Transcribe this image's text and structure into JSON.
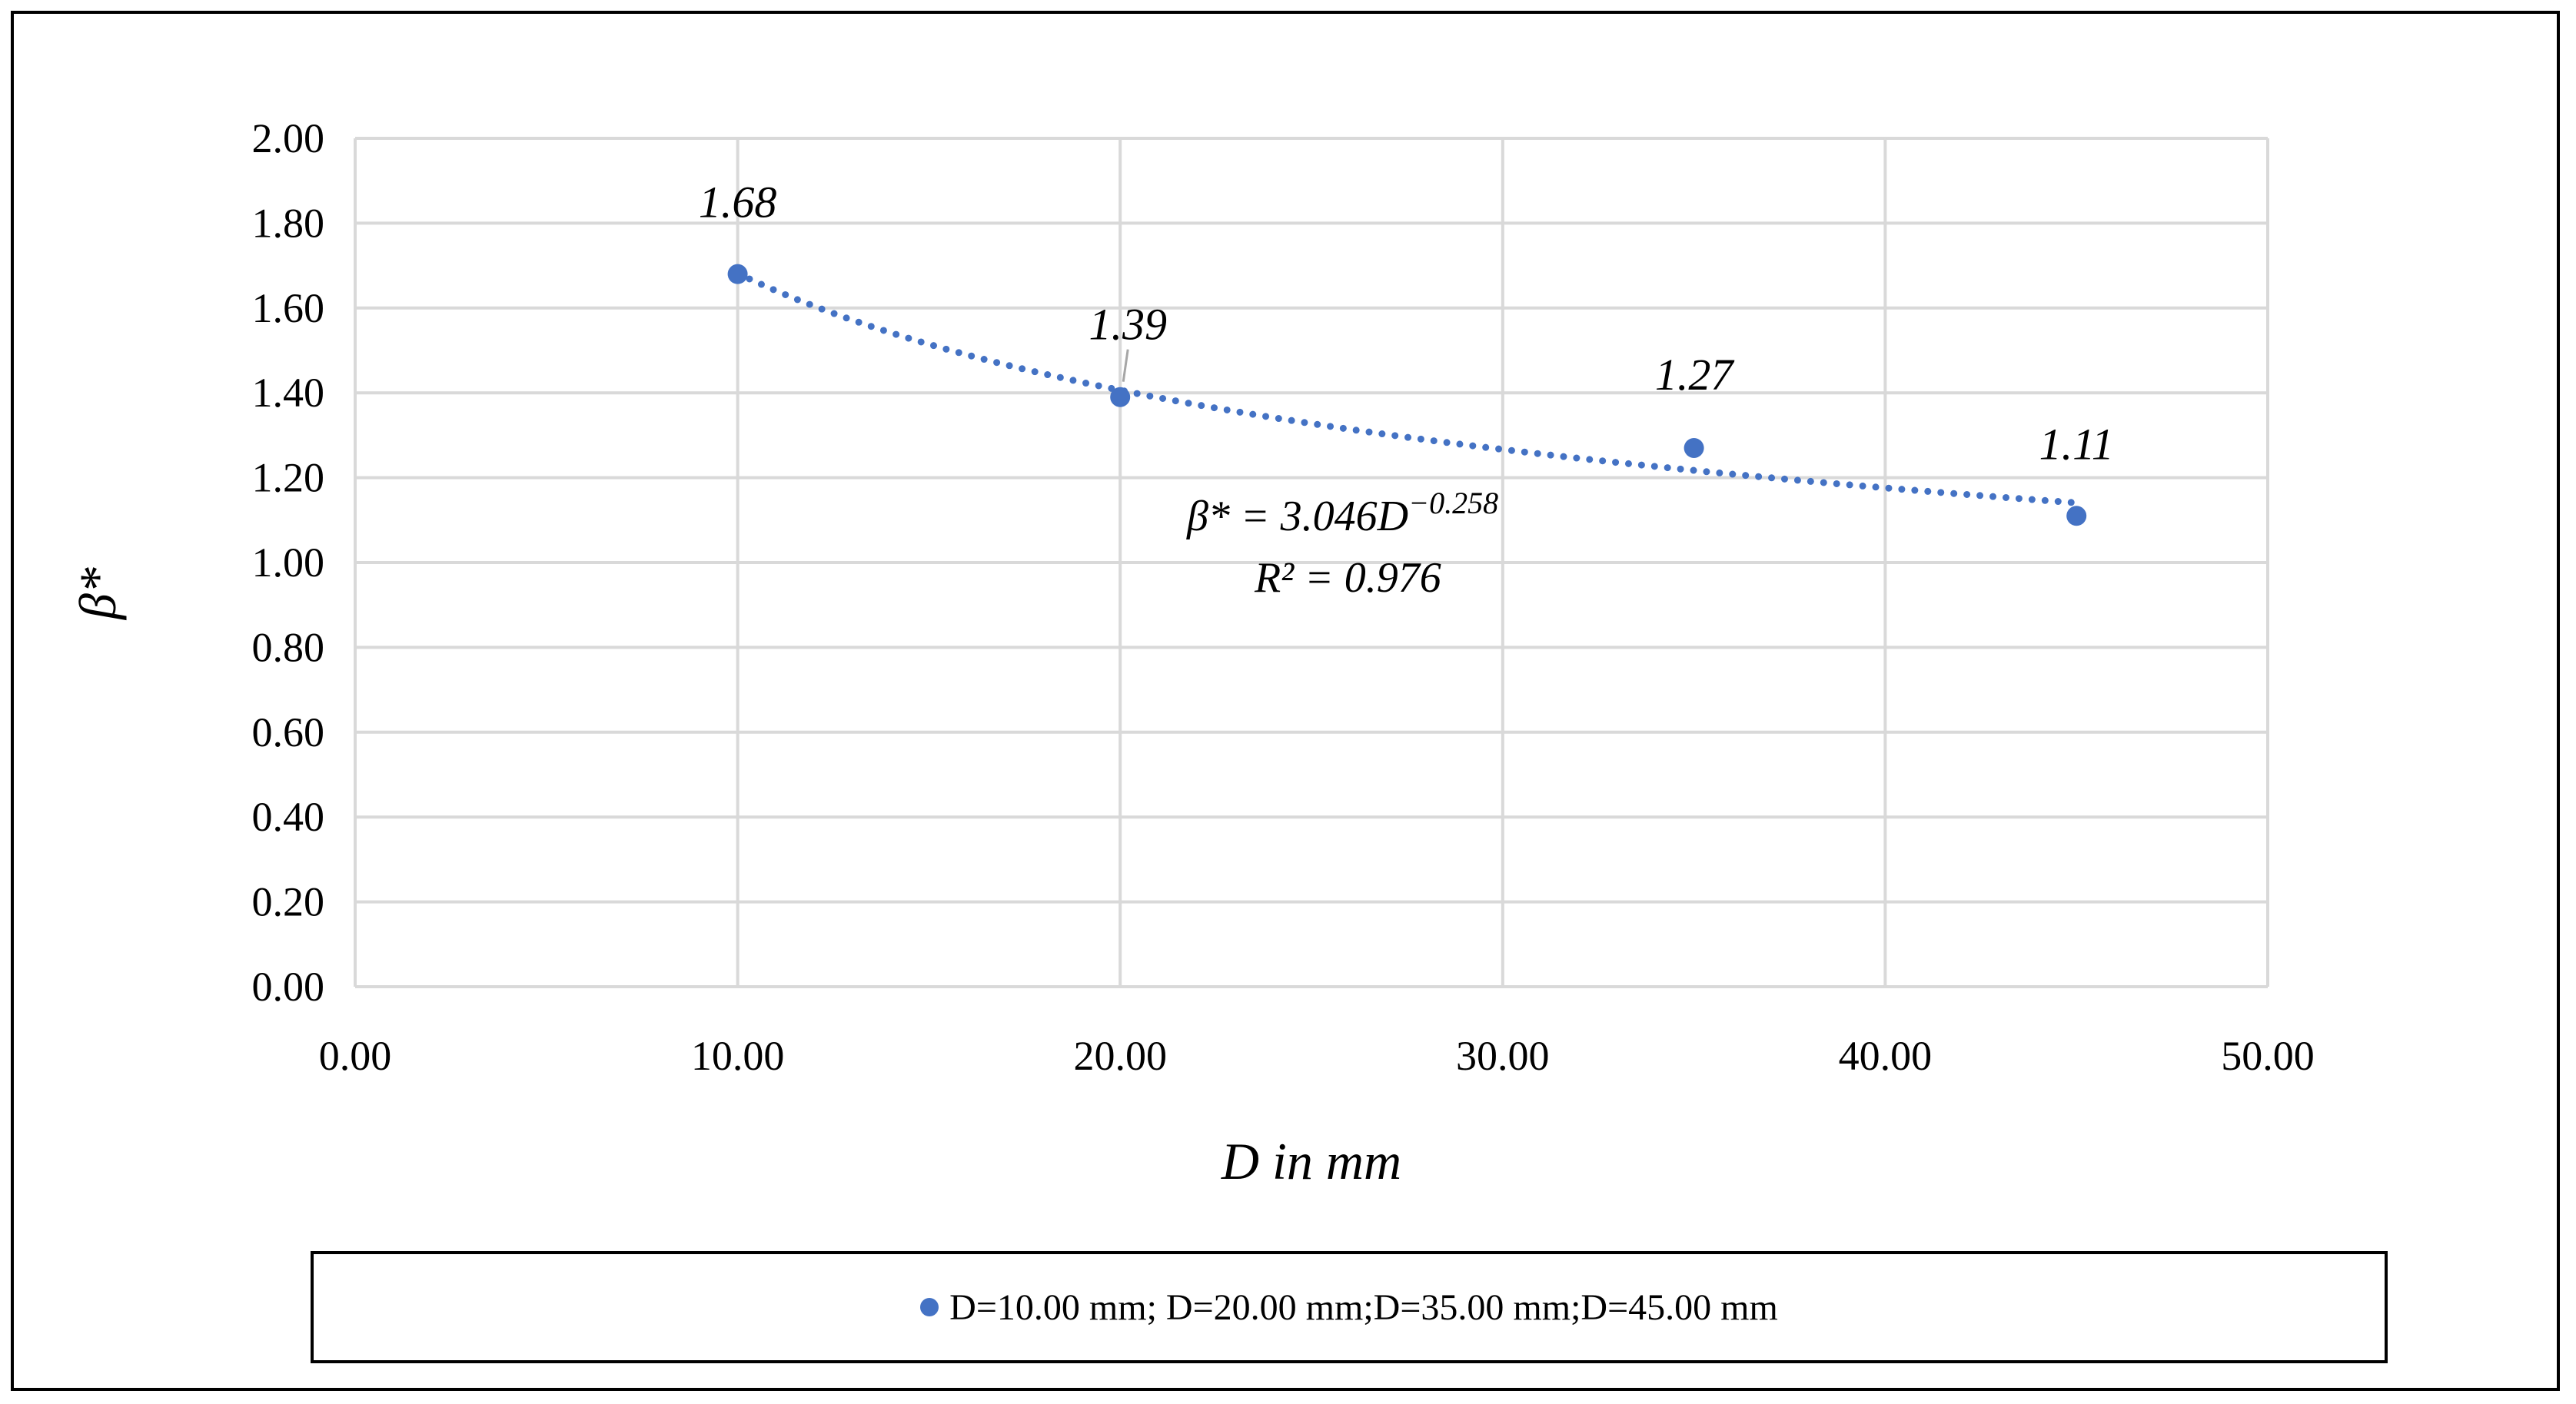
{
  "chart_data": {
    "type": "scatter",
    "title": "",
    "xlabel": "D in mm",
    "ylabel": "β*",
    "xlim": [
      0,
      50
    ],
    "ylim": [
      0,
      2
    ],
    "x_ticks": [
      "0.00",
      "10.00",
      "20.00",
      "30.00",
      "40.00",
      "50.00"
    ],
    "y_ticks": [
      "0.00",
      "0.20",
      "0.40",
      "0.60",
      "0.80",
      "1.00",
      "1.20",
      "1.40",
      "1.60",
      "1.80",
      "2.00"
    ],
    "grid": true,
    "series": [
      {
        "name": "D=10.00 mm; D=20.00 mm;D=35.00 mm;D=45.00 mm",
        "x": [
          10,
          20,
          35,
          45
        ],
        "y": [
          1.68,
          1.39,
          1.27,
          1.11
        ],
        "labels": [
          "1.68",
          "1.39",
          "1.27",
          "1.11"
        ],
        "color": "#4472C4"
      }
    ],
    "trendline": {
      "type": "power",
      "a": 3.046,
      "b": -0.258,
      "equation_prefix": "β* = 3.046D",
      "equation_exponent": "−0.258",
      "r2_text": "R² = 0.976",
      "color": "#4472C4"
    },
    "legend_position": "bottom"
  }
}
